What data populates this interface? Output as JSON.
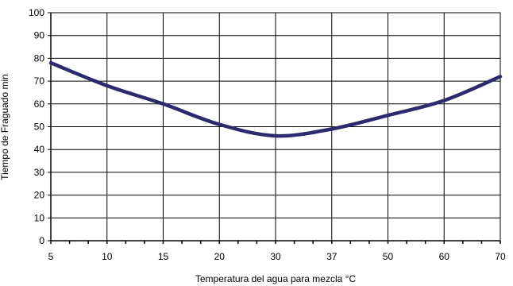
{
  "chart_data": {
    "type": "line",
    "title": "",
    "xlabel": "Temperatura del agua para mezcla °C",
    "ylabel": "Tiempo de Fraguado min",
    "categories": [
      "5",
      "10",
      "15",
      "20",
      "30",
      "37",
      "50",
      "60",
      "70"
    ],
    "y_ticks": [
      "0",
      "10",
      "20",
      "30",
      "40",
      "50",
      "60",
      "70",
      "80",
      "90",
      "100"
    ],
    "ylim": [
      0,
      100
    ],
    "grid": true,
    "legend": "none",
    "series": [
      {
        "color": "#2b2a6e",
        "points": [
          {
            "x": "5",
            "y": 78
          },
          {
            "x": "10",
            "y": 68
          },
          {
            "x": "15",
            "y": 60
          },
          {
            "x": "20",
            "y": 51
          },
          {
            "x": "30",
            "y": 46
          },
          {
            "x": "37",
            "y": 49
          },
          {
            "x": "50",
            "y": 55
          },
          {
            "x": "60",
            "y": 61.5
          },
          {
            "x": "70",
            "y": 72
          }
        ]
      }
    ]
  }
}
